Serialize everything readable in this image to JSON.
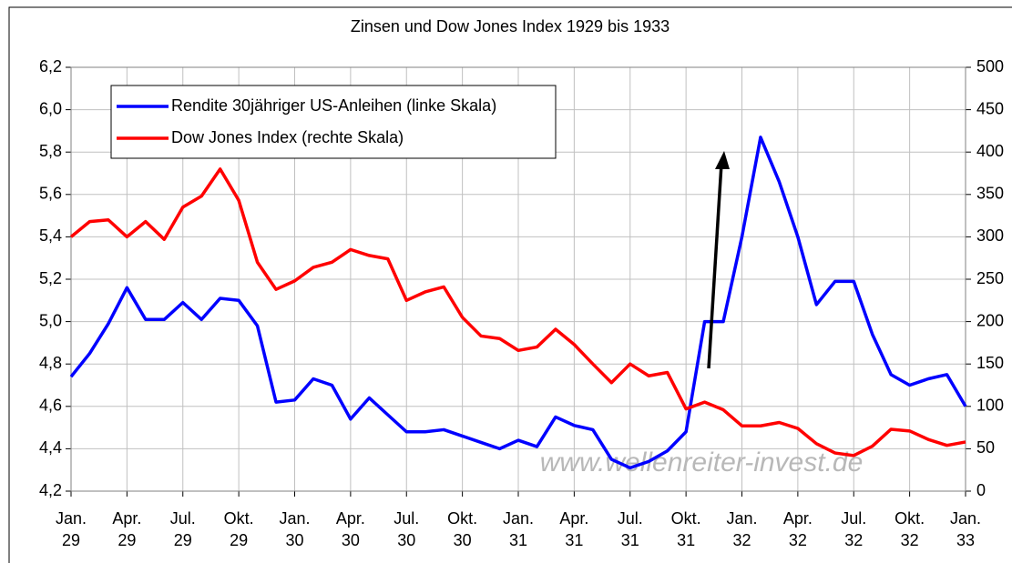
{
  "chart_data": {
    "type": "line",
    "title": "Zinsen und Dow Jones Index 1929 bis 1933",
    "categories": [
      "Jan. 29",
      null,
      null,
      "Apr. 29",
      null,
      null,
      "Jul. 29",
      null,
      null,
      "Okt. 29",
      null,
      null,
      "Jan. 30",
      null,
      null,
      "Apr. 30",
      null,
      null,
      "Jul. 30",
      null,
      null,
      "Okt. 30",
      null,
      null,
      "Jan. 31",
      null,
      null,
      "Apr. 31",
      null,
      null,
      "Jul. 31",
      null,
      null,
      "Okt. 31",
      null,
      null,
      "Jan. 32",
      null,
      null,
      "Apr. 32",
      null,
      null,
      "Jul. 32",
      null,
      null,
      "Okt. 32",
      null,
      null,
      "Jan. 33"
    ],
    "series": [
      {
        "name": "Rendite 30jähriger US-Anleihen (linke Skala)",
        "color": "#0000ff",
        "axis": "y",
        "values": [
          4.74,
          4.85,
          4.99,
          5.16,
          5.01,
          5.01,
          5.09,
          5.01,
          5.11,
          5.1,
          4.98,
          4.62,
          4.63,
          4.73,
          4.7,
          4.54,
          4.64,
          4.56,
          4.48,
          4.48,
          4.49,
          4.46,
          4.43,
          4.4,
          4.44,
          4.41,
          4.55,
          4.51,
          4.49,
          4.35,
          4.31,
          4.34,
          4.39,
          4.48,
          5.0,
          5.0,
          5.4,
          5.87,
          5.66,
          5.4,
          5.08,
          5.19,
          5.19,
          4.94,
          4.75,
          4.7,
          4.73,
          4.75,
          4.6
        ]
      },
      {
        "name": "Dow Jones Index (rechte Skala)",
        "color": "#ff0000",
        "axis": "y2",
        "values": [
          300,
          318,
          320,
          300,
          318,
          297,
          335,
          348,
          380,
          343,
          270,
          238,
          248,
          264,
          270,
          285,
          278,
          274,
          225,
          235,
          241,
          205,
          183,
          180,
          166,
          170,
          191,
          173,
          150,
          128,
          150,
          136,
          140,
          97,
          105,
          96,
          77,
          77,
          81,
          74,
          56,
          45,
          42,
          53,
          73,
          71,
          61,
          54,
          58
        ]
      }
    ],
    "ylim": [
      4.2,
      6.2
    ],
    "yticks": [
      {
        "value": 4.2,
        "label": "4,2"
      },
      {
        "value": 4.4,
        "label": "4,4"
      },
      {
        "value": 4.6,
        "label": "4,6"
      },
      {
        "value": 4.8,
        "label": "4,8"
      },
      {
        "value": 5.0,
        "label": "5,0"
      },
      {
        "value": 5.2,
        "label": "5,2"
      },
      {
        "value": 5.4,
        "label": "5,4"
      },
      {
        "value": 5.6,
        "label": "5,6"
      },
      {
        "value": 5.8,
        "label": "5,8"
      },
      {
        "value": 6.0,
        "label": "6,0"
      },
      {
        "value": 6.2,
        "label": "6,2"
      }
    ],
    "y2lim": [
      0,
      500
    ],
    "y2ticks": [
      0,
      50,
      100,
      150,
      200,
      250,
      300,
      350,
      400,
      450,
      500
    ],
    "grid": true,
    "legend": "upper left",
    "annotation": "www.wellenreiter-invest.de"
  }
}
